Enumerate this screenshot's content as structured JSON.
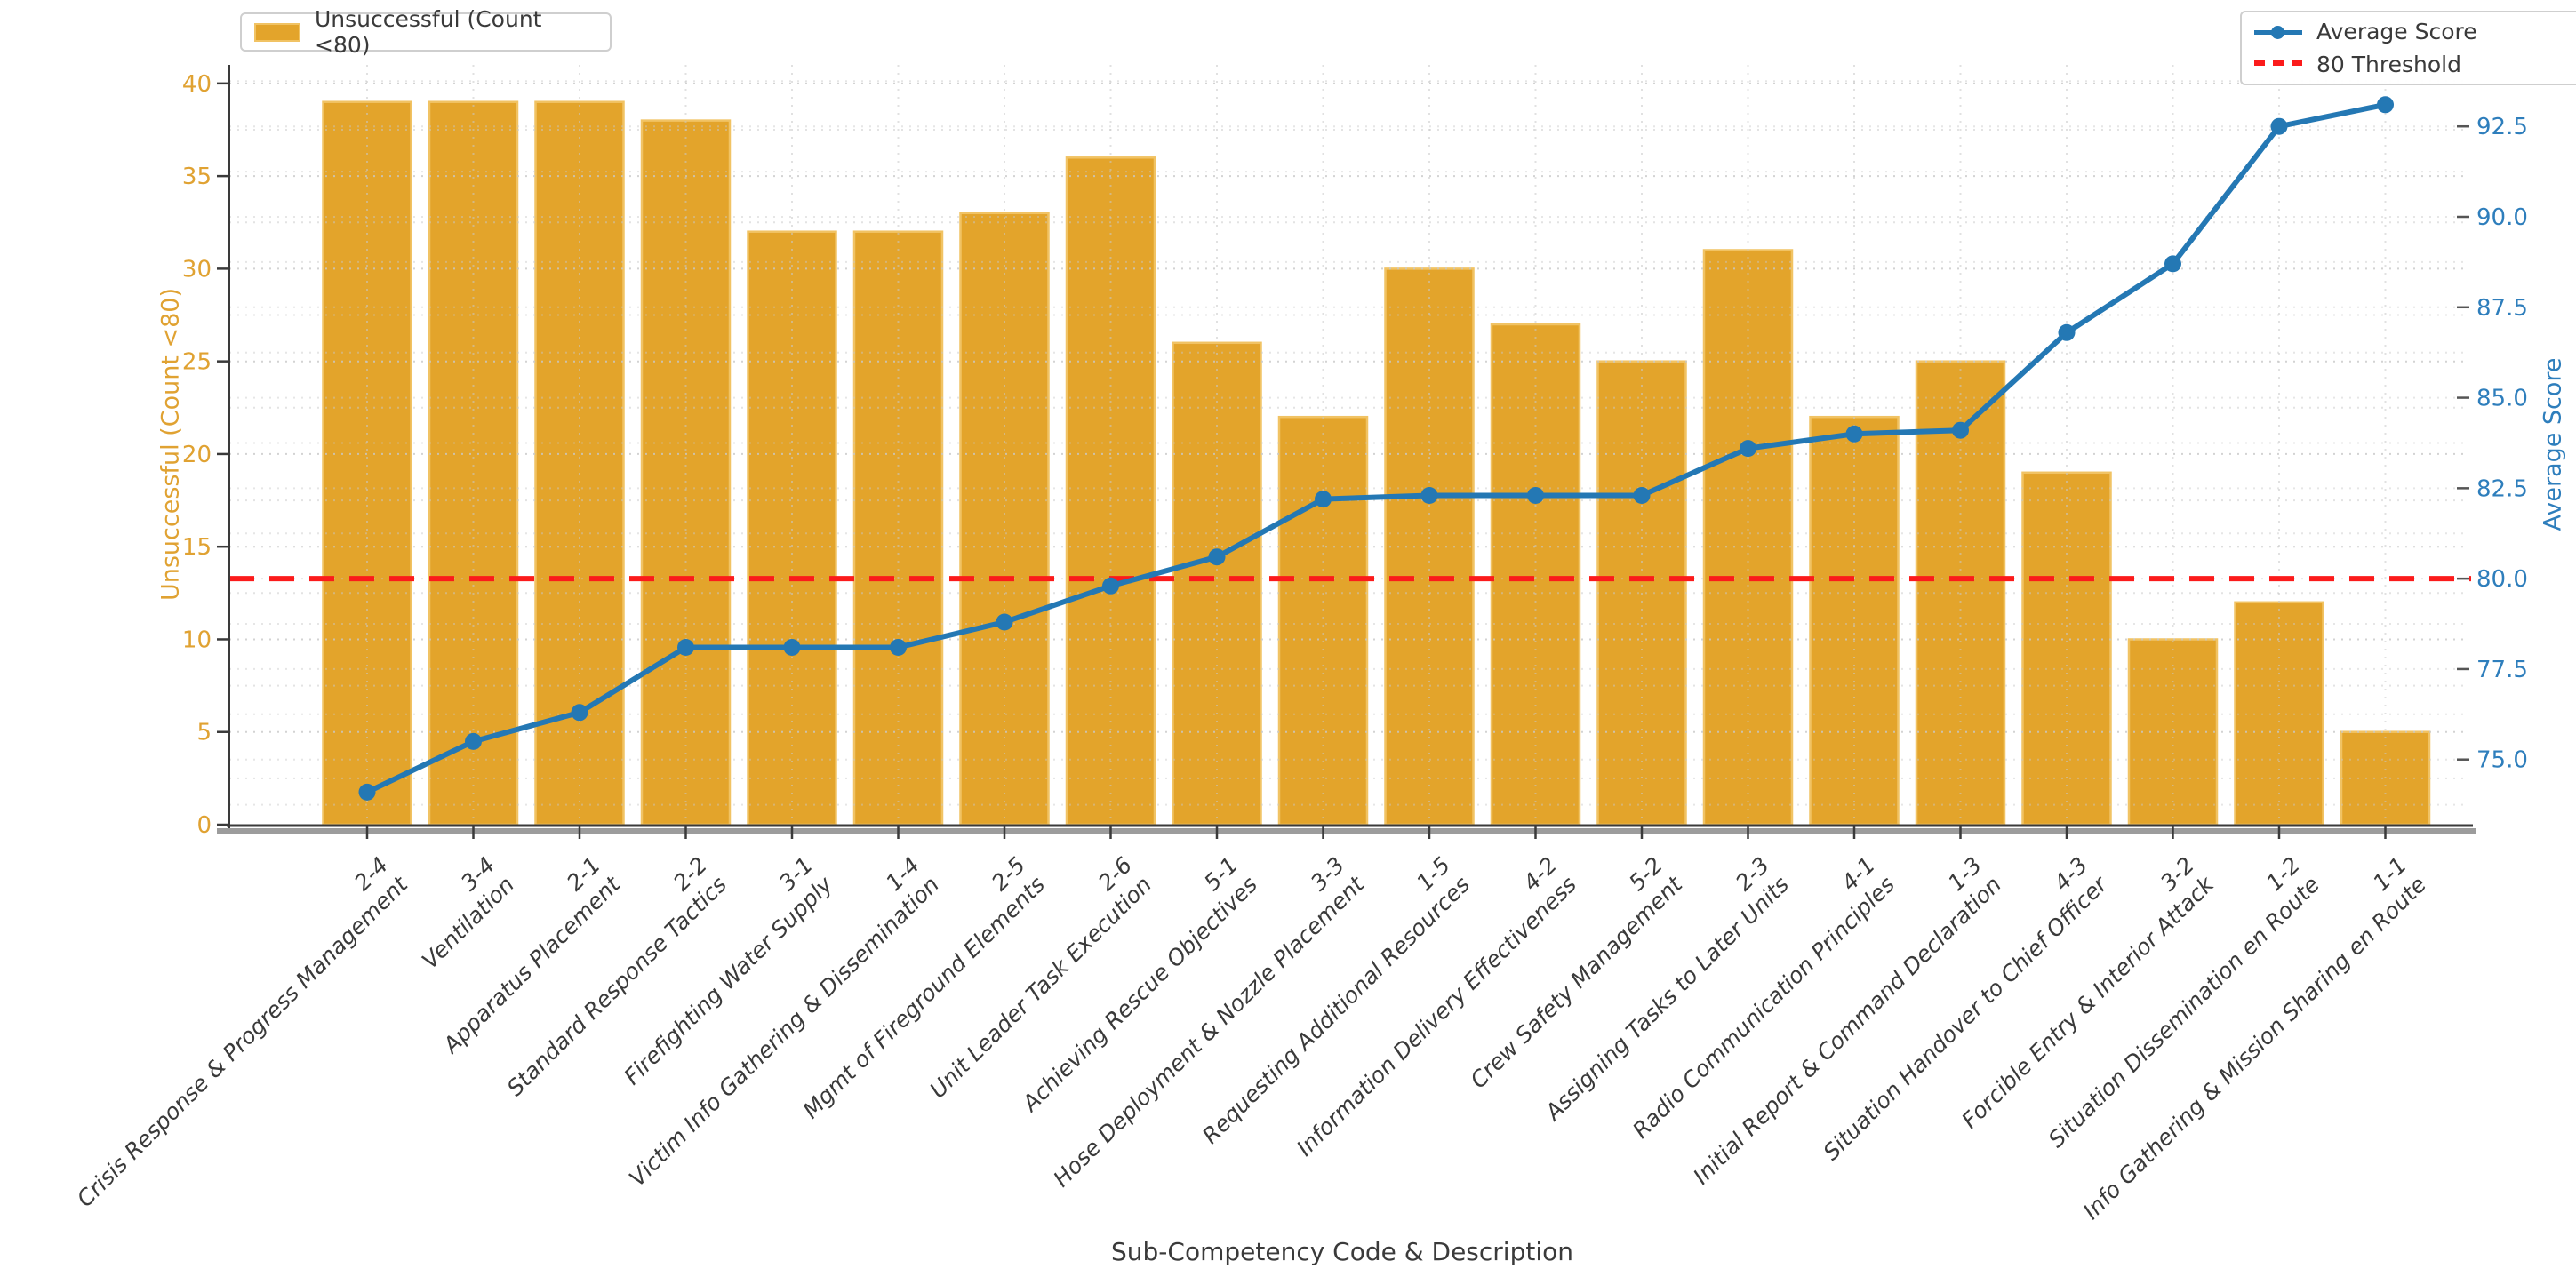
{
  "chart_data": {
    "type": "bar",
    "title": "",
    "xlabel": "Sub-Competency Code & Description",
    "ylabel_left": "Unsuccessful (Count <80)",
    "ylabel_right": "Average Score",
    "grid": true,
    "legend_positions": [
      "top-left",
      "top-right"
    ],
    "categories": [
      {
        "code": "2-4",
        "label": "Crisis Response & Progress Management"
      },
      {
        "code": "3-4",
        "label": "Ventilation"
      },
      {
        "code": "2-1",
        "label": "Apparatus Placement"
      },
      {
        "code": "2-2",
        "label": "Standard Response Tactics"
      },
      {
        "code": "3-1",
        "label": "Firefighting Water Supply"
      },
      {
        "code": "1-4",
        "label": "Victim Info Gathering & Dissemination"
      },
      {
        "code": "2-5",
        "label": "Mgmt of Fireground Elements"
      },
      {
        "code": "2-6",
        "label": "Unit Leader Task Execution"
      },
      {
        "code": "5-1",
        "label": "Achieving Rescue Objectives"
      },
      {
        "code": "3-3",
        "label": "Hose Deployment & Nozzle Placement"
      },
      {
        "code": "1-5",
        "label": "Requesting Additional Resources"
      },
      {
        "code": "4-2",
        "label": "Information Delivery Effectiveness"
      },
      {
        "code": "5-2",
        "label": "Crew Safety Management"
      },
      {
        "code": "2-3",
        "label": "Assigning Tasks to Later Units"
      },
      {
        "code": "4-1",
        "label": "Radio Communication Principles"
      },
      {
        "code": "1-3",
        "label": "Initial Report & Command Declaration"
      },
      {
        "code": "4-3",
        "label": "Situation Handover to Chief Officer"
      },
      {
        "code": "3-2",
        "label": "Forcible Entry & Interior Attack"
      },
      {
        "code": "1-2",
        "label": "Situation Dissemination en Route"
      },
      {
        "code": "1-1",
        "label": "Info Gathering & Mission Sharing en Route"
      }
    ],
    "bar_series": {
      "name": "Unsuccessful (Count <80)",
      "values": [
        39,
        39,
        39,
        38,
        32,
        32,
        33,
        36,
        26,
        22,
        30,
        27,
        25,
        31,
        22,
        25,
        19,
        10,
        12,
        5
      ]
    },
    "line_series": {
      "name": "Average Score",
      "values": [
        74.1,
        75.5,
        76.3,
        78.1,
        78.1,
        78.1,
        78.8,
        79.8,
        80.6,
        82.2,
        82.3,
        82.3,
        82.3,
        83.6,
        84.0,
        84.1,
        86.8,
        88.7,
        92.5,
        93.1
      ]
    },
    "threshold": {
      "label": "80 Threshold",
      "value": 80
    },
    "left_axis": {
      "ticks": [
        0,
        5,
        10,
        15,
        20,
        25,
        30,
        35,
        40
      ],
      "lim": [
        0,
        41.0
      ],
      "minor_step": 2.5
    },
    "right_axis": {
      "tick_labels": [
        "75.0",
        "77.5",
        "80.0",
        "82.5",
        "85.0",
        "87.5",
        "90.0",
        "92.5"
      ],
      "ticks": [
        75,
        77.5,
        80,
        82.5,
        85,
        87.5,
        90,
        92.5
      ],
      "lim": [
        73.2,
        94.2
      ],
      "minor_step": 1.25
    },
    "colors": {
      "bar_face": "#E3A42B",
      "bar_edge": "#F1C364",
      "line": "#2478B4",
      "threshold": "#FB1B1B",
      "grid": "#C9C9C9",
      "left_tick_text": "#E0A232",
      "right_tick_text": "#2E7EBC",
      "dark_text": "#3A3A3A",
      "spine_dark": "#3A3A3A",
      "spine_gray": "#9C9C9C"
    }
  }
}
